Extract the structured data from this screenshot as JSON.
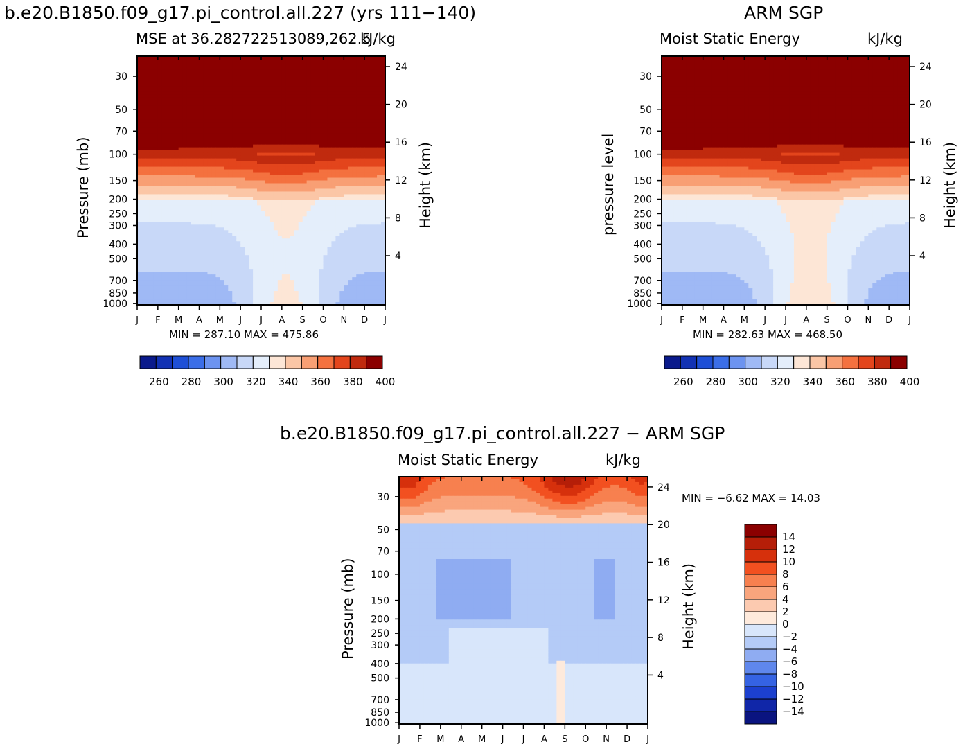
{
  "panels": [
    {
      "case_title": "b.e20.B1850.f09_g17.pi_control.all.227 (yrs 111−140)",
      "left_title": "MSE at 36.282722513089,262.5",
      "right_title": "kJ/kg",
      "left_axis_label": "Pressure (mb)",
      "right_axis_label": "Height (km)",
      "minmax_text": "MIN = 287.10 MAX = 475.86"
    },
    {
      "case_title": "ARM SGP",
      "left_title": "Moist Static Energy",
      "right_title": "kJ/kg",
      "left_axis_label": "pressure level",
      "right_axis_label": "Height (km)",
      "minmax_text": "MIN = 282.63 MAX = 468.50"
    },
    {
      "case_title": "b.e20.B1850.f09_g17.pi_control.all.227 − ARM SGP",
      "left_title": "Moist Static Energy",
      "right_title": "kJ/kg",
      "left_axis_label": "Pressure (mb)",
      "right_axis_label": "Height (km)",
      "minmax_text": "MIN =   −6.62 MAX =   14.03"
    }
  ],
  "pressure_ticks": [
    "30",
    "50",
    "70",
    "100",
    "150",
    "200",
    "250",
    "300",
    "400",
    "500",
    "700",
    "850",
    "1000"
  ],
  "height_ticks": [
    "24",
    "20",
    "16",
    "12",
    "8",
    "4"
  ],
  "month_ticks": [
    "J",
    "F",
    "M",
    "A",
    "M",
    "J",
    "J",
    "A",
    "S",
    "O",
    "N",
    "D",
    "J"
  ],
  "colorbar_abs": {
    "labels": [
      "260",
      "280",
      "300",
      "320",
      "340",
      "360",
      "380",
      "400"
    ],
    "colors": [
      "#0a1a8c",
      "#1232b4",
      "#1e4fd6",
      "#3b6ee8",
      "#6c93f0",
      "#9fb9f5",
      "#c8d8f8",
      "#e4eefb",
      "#fde6d6",
      "#fbc6a6",
      "#f89f74",
      "#f4713f",
      "#e3451c",
      "#c02a0e",
      "#8b0000"
    ]
  },
  "colorbar_diff": {
    "labels": [
      "14",
      "12",
      "10",
      "8",
      "6",
      "4",
      "2",
      "0",
      "−2",
      "−4",
      "−6",
      "−8",
      "−10",
      "−12",
      "−14"
    ],
    "colors": [
      "#8b0000",
      "#b51e08",
      "#d6300c",
      "#f25020",
      "#f7804f",
      "#f9a57d",
      "#fccab0",
      "#feeadc",
      "#d8e6fb",
      "#b4cbf7",
      "#8facf2",
      "#5f87ec",
      "#3563e3",
      "#1c40cf",
      "#1026a8",
      "#0a1480"
    ]
  },
  "chart_data": [
    {
      "type": "heatmap",
      "title": "MSE at 36.282722513089,262.5",
      "units": "kJ/kg",
      "xlabel": "",
      "ylabel": "Pressure (mb)",
      "y2label": "Height (km)",
      "x": [
        "J",
        "F",
        "M",
        "A",
        "M",
        "J",
        "J",
        "A",
        "S",
        "O",
        "N",
        "D",
        "J"
      ],
      "y_pressure": [
        1000,
        850,
        700,
        500,
        400,
        300,
        250,
        200,
        150,
        100,
        70,
        50,
        30
      ],
      "levels": [
        260,
        270,
        280,
        290,
        300,
        310,
        320,
        330,
        340,
        350,
        360,
        370,
        380,
        390,
        400
      ],
      "min": 287.1,
      "max": 475.86
    },
    {
      "type": "heatmap",
      "title": "Moist Static Energy",
      "units": "kJ/kg",
      "ylabel": "pressure level",
      "y2label": "Height (km)",
      "x": [
        "J",
        "F",
        "M",
        "A",
        "M",
        "J",
        "J",
        "A",
        "S",
        "O",
        "N",
        "D",
        "J"
      ],
      "y_pressure": [
        1000,
        850,
        700,
        500,
        400,
        300,
        250,
        200,
        150,
        100,
        70,
        50,
        30
      ],
      "levels": [
        260,
        270,
        280,
        290,
        300,
        310,
        320,
        330,
        340,
        350,
        360,
        370,
        380,
        390,
        400
      ],
      "min": 282.63,
      "max": 468.5
    },
    {
      "type": "heatmap",
      "title": "Moist Static Energy",
      "units": "kJ/kg",
      "ylabel": "Pressure (mb)",
      "y2label": "Height (km)",
      "x": [
        "J",
        "F",
        "M",
        "A",
        "M",
        "J",
        "J",
        "A",
        "S",
        "O",
        "N",
        "D",
        "J"
      ],
      "y_pressure": [
        1000,
        850,
        700,
        500,
        400,
        300,
        250,
        200,
        150,
        100,
        70,
        50,
        30
      ],
      "levels": [
        -14,
        -12,
        -10,
        -8,
        -6,
        -4,
        -2,
        0,
        2,
        4,
        6,
        8,
        10,
        12,
        14
      ],
      "min": -6.62,
      "max": 14.03
    }
  ]
}
